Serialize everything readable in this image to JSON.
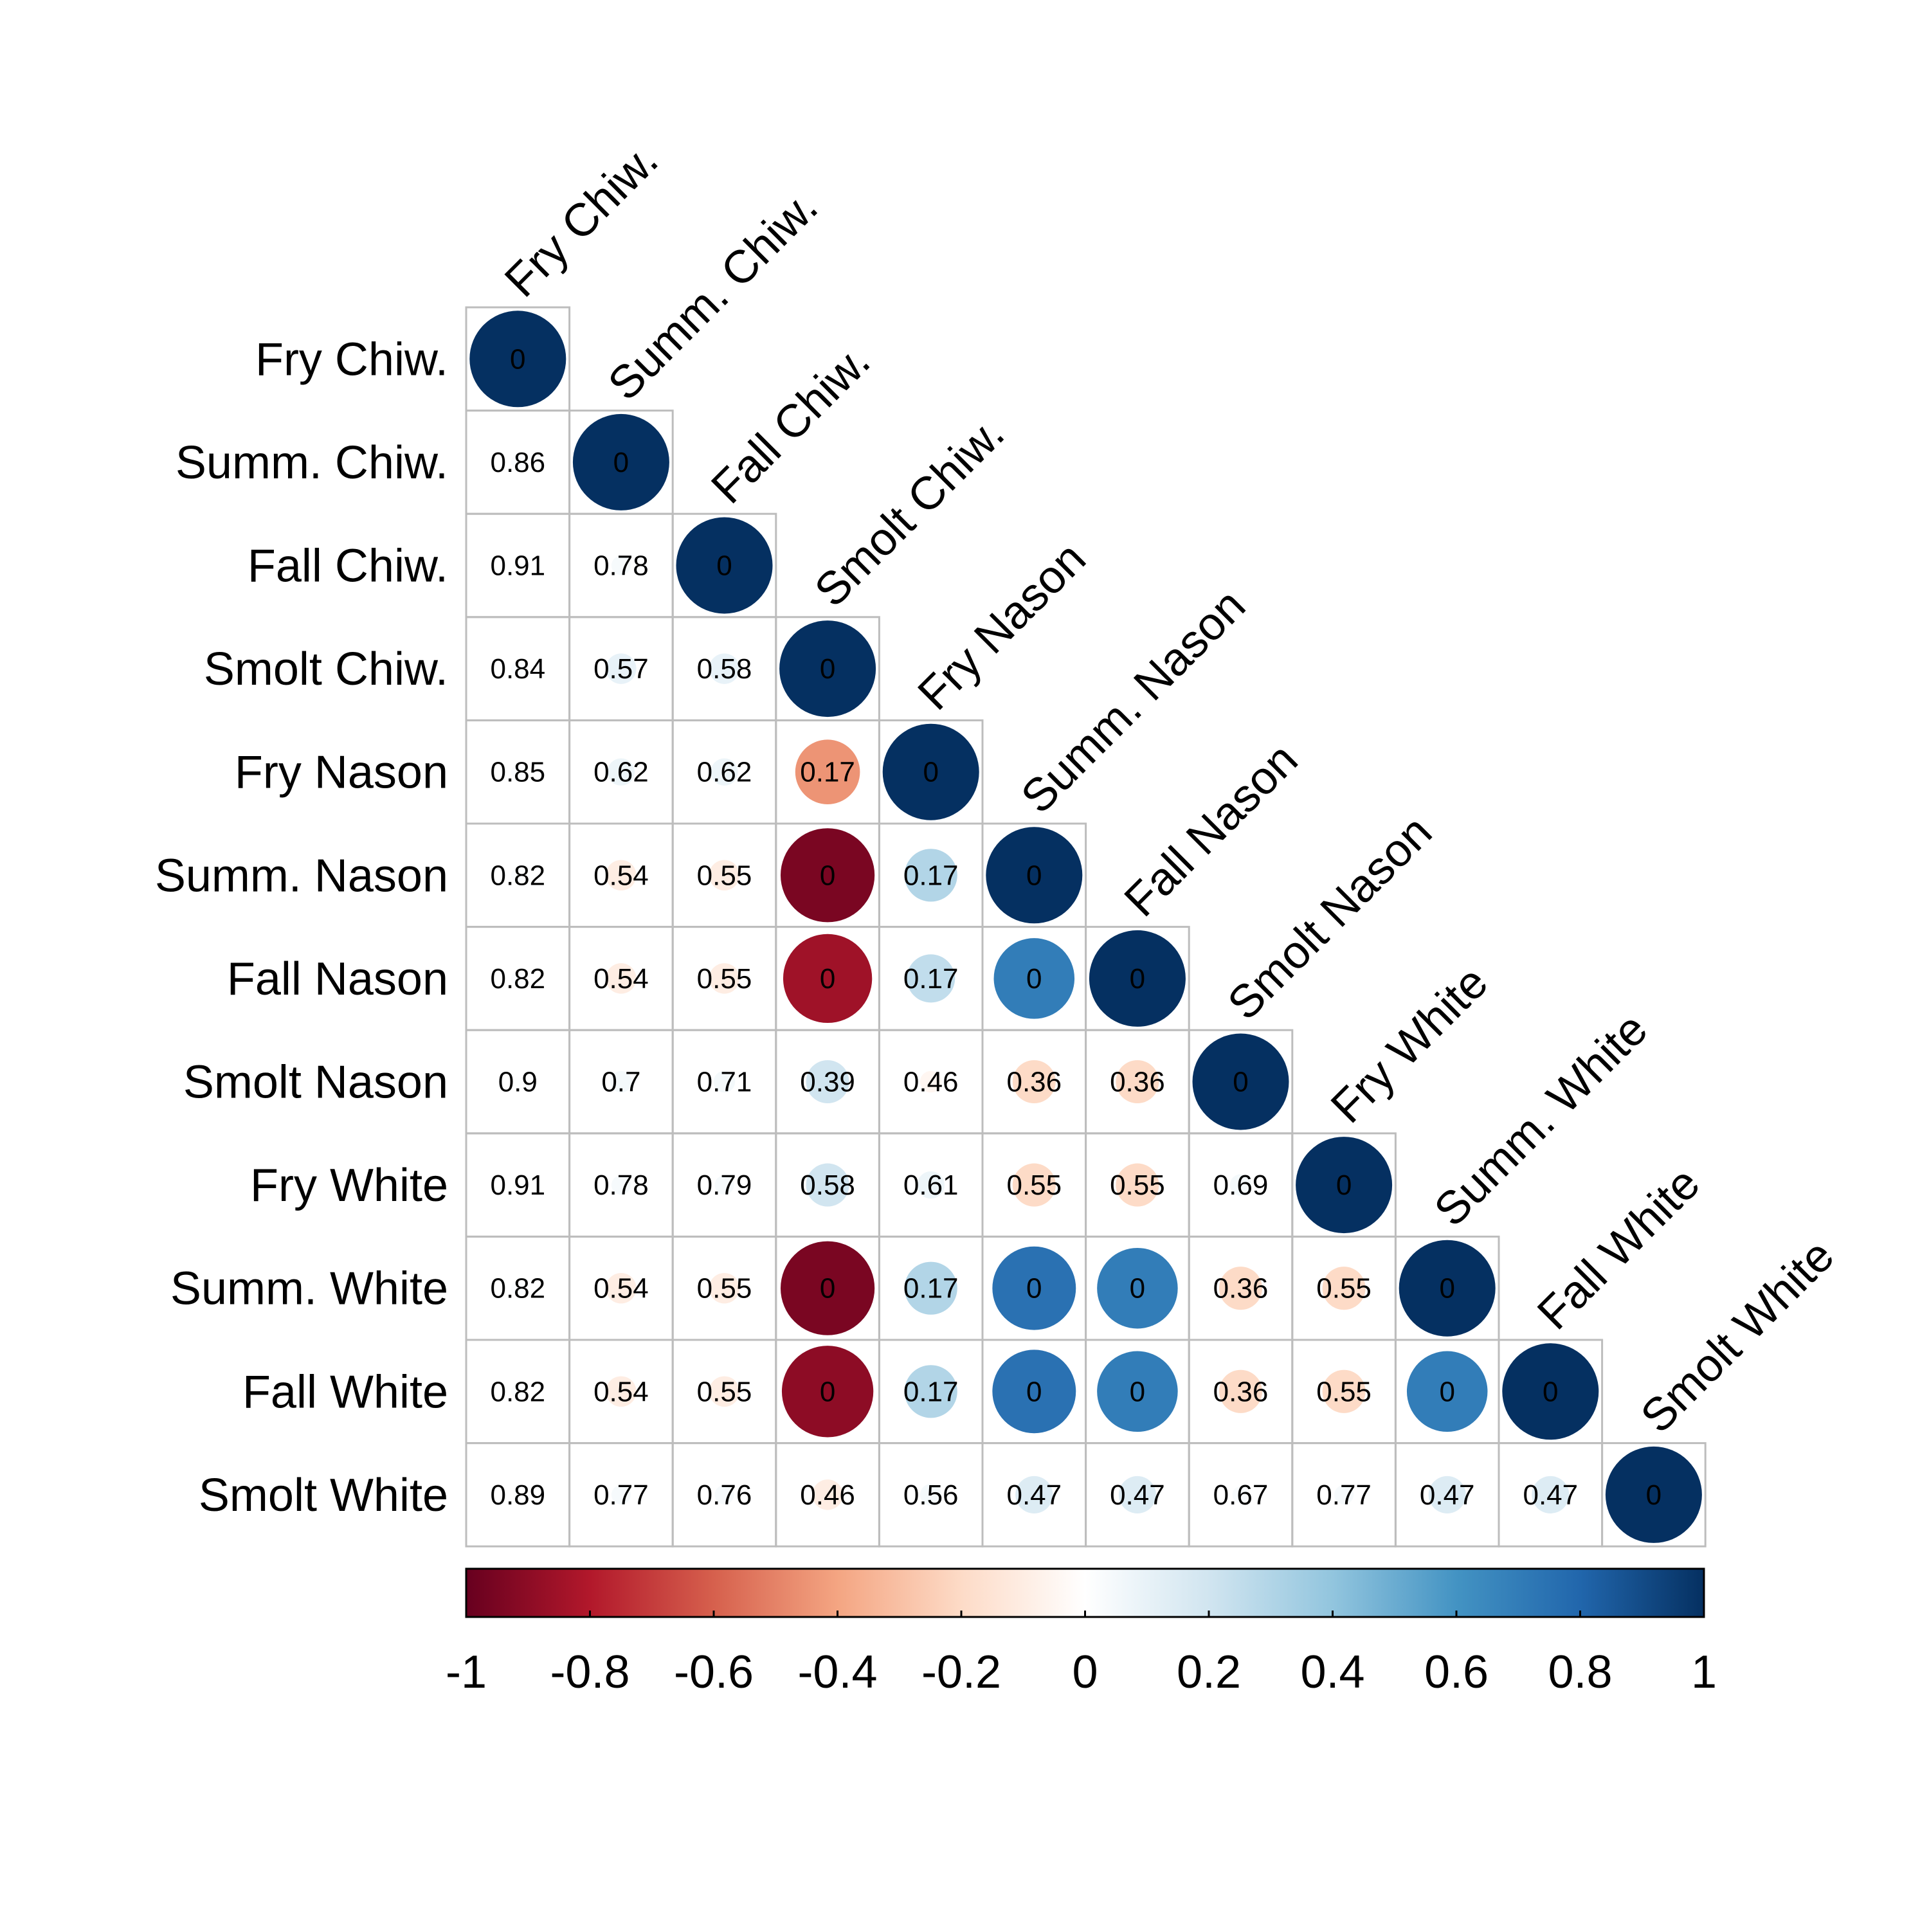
{
  "chart_data": {
    "type": "heatmap",
    "subtype": "lower-triangle correlation plot with circles (p-value labels)",
    "variables": [
      "Fry Chiw.",
      "Summ. Chiw.",
      "Fall Chiw.",
      "Smolt Chiw.",
      "Fry Nason",
      "Summ. Nason",
      "Fall Nason",
      "Smolt Nason",
      "Fry White",
      "Summ. White",
      "Fall White",
      "Smolt White"
    ],
    "correlations": [
      [
        1.0
      ],
      [
        0.02,
        1.0
      ],
      [
        0.01,
        0.04,
        1.0
      ],
      [
        0.02,
        0.1,
        0.1,
        1.0
      ],
      [
        0.02,
        0.08,
        0.08,
        -0.45,
        1.0
      ],
      [
        0.02,
        -0.1,
        -0.1,
        -0.95,
        0.3,
        1.0
      ],
      [
        0.02,
        -0.1,
        -0.1,
        -0.85,
        0.25,
        0.7,
        1.0
      ],
      [
        0.01,
        0.05,
        0.05,
        0.2,
        -0.05,
        -0.2,
        -0.2,
        1.0
      ],
      [
        0.01,
        0.04,
        0.04,
        0.2,
        0.08,
        -0.2,
        -0.2,
        0.05,
        1.0
      ],
      [
        0.02,
        -0.1,
        -0.1,
        -0.95,
        0.3,
        0.75,
        0.7,
        -0.2,
        -0.2,
        1.0
      ],
      [
        0.02,
        -0.1,
        -0.1,
        -0.9,
        0.3,
        0.75,
        0.7,
        -0.2,
        -0.2,
        0.7,
        1.0
      ],
      [
        0.01,
        0.04,
        0.04,
        -0.1,
        0.05,
        0.15,
        0.15,
        0.03,
        0.04,
        0.15,
        0.15,
        1.0
      ]
    ],
    "labels": [
      [
        "0"
      ],
      [
        "0.86",
        "0"
      ],
      [
        "0.91",
        "0.78",
        "0"
      ],
      [
        "0.84",
        "0.57",
        "0.58",
        "0"
      ],
      [
        "0.85",
        "0.62",
        "0.62",
        "0.17",
        "0"
      ],
      [
        "0.82",
        "0.54",
        "0.55",
        "0",
        "0.17",
        "0"
      ],
      [
        "0.82",
        "0.54",
        "0.55",
        "0",
        "0.17",
        "0",
        "0"
      ],
      [
        "0.9",
        "0.7",
        "0.71",
        "0.39",
        "0.46",
        "0.36",
        "0.36",
        "0"
      ],
      [
        "0.91",
        "0.78",
        "0.79",
        "0.58",
        "0.61",
        "0.55",
        "0.55",
        "0.69",
        "0"
      ],
      [
        "0.82",
        "0.54",
        "0.55",
        "0",
        "0.17",
        "0",
        "0",
        "0.36",
        "0.55",
        "0"
      ],
      [
        "0.82",
        "0.54",
        "0.55",
        "0",
        "0.17",
        "0",
        "0",
        "0.36",
        "0.55",
        "0",
        "0"
      ],
      [
        "0.89",
        "0.77",
        "0.76",
        "0.46",
        "0.56",
        "0.47",
        "0.47",
        "0.67",
        "0.77",
        "0.47",
        "0.47",
        "0"
      ]
    ],
    "colorbar": {
      "range": [
        -1,
        1
      ],
      "ticks": [
        "-1",
        "-0.8",
        "-0.6",
        "-0.4",
        "-0.2",
        "0",
        "0.2",
        "0.4",
        "0.6",
        "0.8",
        "1"
      ],
      "colors": [
        "#67001F",
        "#B2182B",
        "#D6604D",
        "#F4A582",
        "#FDDBC7",
        "#FFFFFF",
        "#D1E5F0",
        "#92C5DE",
        "#4393C3",
        "#2166AC",
        "#053061"
      ]
    },
    "grid": true,
    "legend_position": "bottom"
  }
}
